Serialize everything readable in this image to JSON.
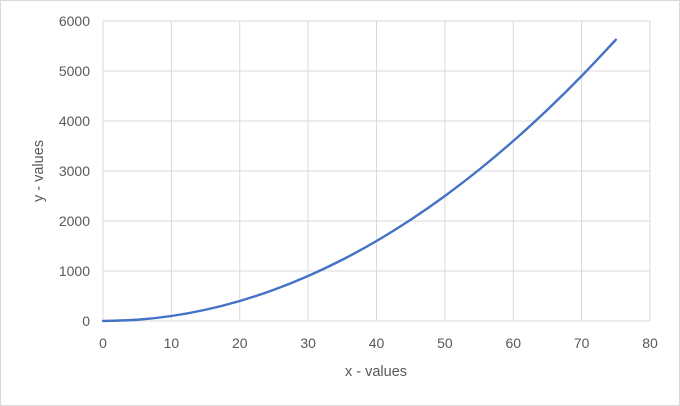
{
  "chart_data": {
    "type": "line",
    "title": "",
    "xlabel": "x - values",
    "ylabel": "y - values",
    "xlim": [
      0,
      80
    ],
    "ylim": [
      0,
      6000
    ],
    "xticks": [
      0,
      10,
      20,
      30,
      40,
      50,
      60,
      70,
      80
    ],
    "yticks": [
      0,
      1000,
      2000,
      3000,
      4000,
      5000,
      6000
    ],
    "grid": true,
    "legend": "none",
    "series": [
      {
        "color": "#4472c4",
        "x": [
          0,
          5,
          10,
          15,
          20,
          25,
          30,
          35,
          40,
          45,
          50,
          55,
          60,
          65,
          70,
          75
        ],
        "y": [
          0,
          25,
          100,
          225,
          400,
          625,
          900,
          1225,
          1600,
          2025,
          2500,
          3025,
          3600,
          4225,
          4900,
          5625
        ]
      }
    ]
  }
}
